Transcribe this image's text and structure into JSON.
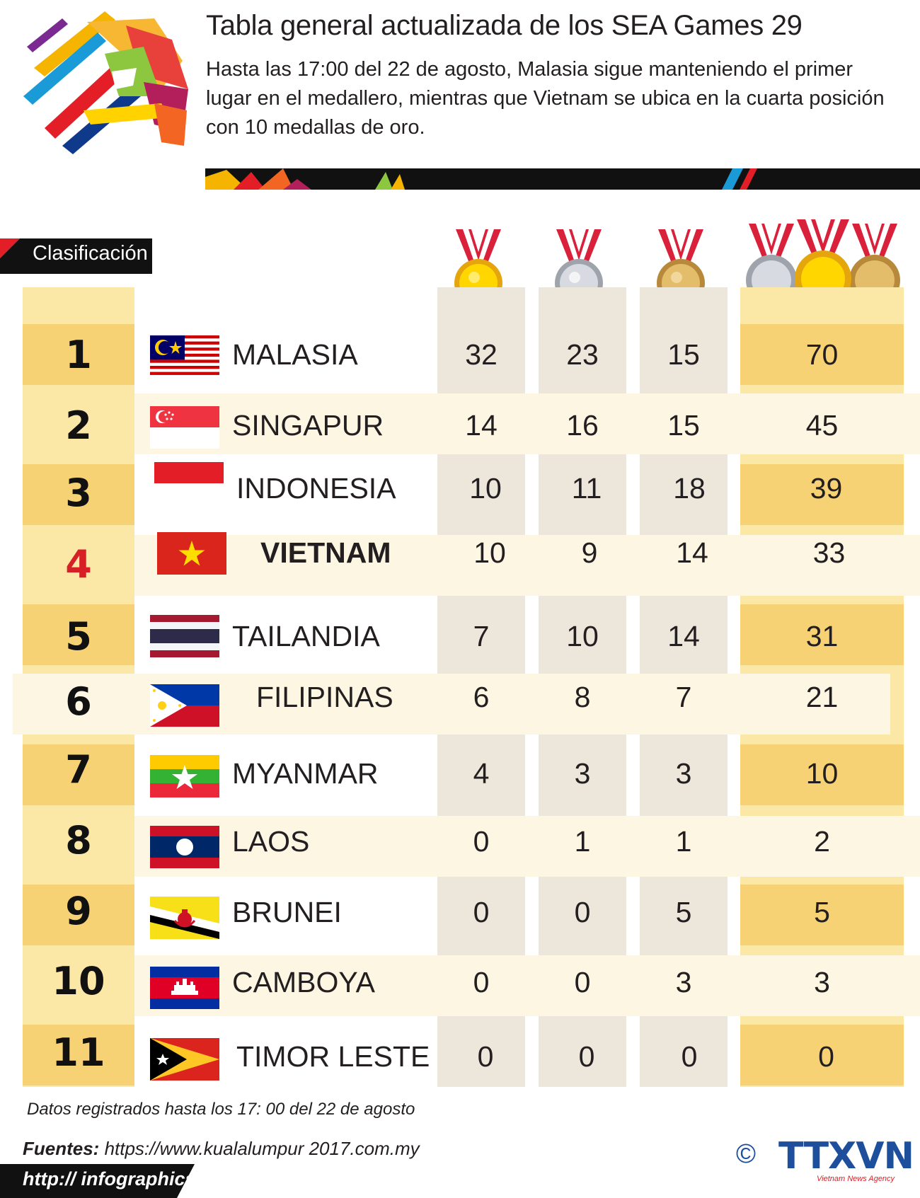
{
  "header": {
    "title": "Tabla general actualizada de los SEA Games 29",
    "subtitle": "Hasta las 17:00  del 22 de agosto, Malasia sigue manteniendo el primer lugar en el medallero, mientras que Vietnam se ubica en la cuarta posición con 10 medallas de oro."
  },
  "table": {
    "rank_header": "Clasificación",
    "medal_columns": [
      "gold-medal-icon",
      "silver-medal-icon",
      "bronze-medal-icon",
      "all-medals-icon"
    ],
    "rows": [
      {
        "rank": "1",
        "country": "MALASIA",
        "gold": "32",
        "silver": "23",
        "bronze": "15",
        "total": "70",
        "flag": "malaysia-flag-icon"
      },
      {
        "rank": "2",
        "country": "SINGAPUR",
        "gold": "14",
        "silver": "16",
        "bronze": "15",
        "total": "45",
        "flag": "singapore-flag-icon"
      },
      {
        "rank": "3",
        "country": "INDONESIA",
        "gold": "10",
        "silver": "11",
        "bronze": "18",
        "total": "39",
        "flag": "indonesia-flag-icon"
      },
      {
        "rank": "4",
        "country": "VIETNAM",
        "gold": "10",
        "silver": "9",
        "bronze": "14",
        "total": "33",
        "flag": "vietnam-flag-icon",
        "highlight": true
      },
      {
        "rank": "5",
        "country": "TAILANDIA",
        "gold": "7",
        "silver": "10",
        "bronze": "14",
        "total": "31",
        "flag": "thailand-flag-icon"
      },
      {
        "rank": "6",
        "country": "FILIPINAS",
        "gold": "6",
        "silver": "8",
        "bronze": "7",
        "total": "21",
        "flag": "philippines-flag-icon"
      },
      {
        "rank": "7",
        "country": "MYANMAR",
        "gold": "4",
        "silver": "3",
        "bronze": "3",
        "total": "10",
        "flag": "myanmar-flag-icon"
      },
      {
        "rank": "8",
        "country": "LAOS",
        "gold": "0",
        "silver": "1",
        "bronze": "1",
        "total": "2",
        "flag": "laos-flag-icon"
      },
      {
        "rank": "9",
        "country": "BRUNEI",
        "gold": "0",
        "silver": "0",
        "bronze": "5",
        "total": "5",
        "flag": "brunei-flag-icon"
      },
      {
        "rank": "10",
        "country": "CAMBOYA",
        "gold": "0",
        "silver": "0",
        "bronze": "3",
        "total": "3",
        "flag": "cambodia-flag-icon"
      },
      {
        "rank": "11",
        "country": "TIMOR LESTE",
        "gold": "0",
        "silver": "0",
        "bronze": "0",
        "total": "0",
        "flag": "timor-leste-flag-icon"
      }
    ]
  },
  "footer": {
    "note": "Datos registrados hasta los 17: 00 del 22 de agosto",
    "sources_label": "Fuentes:",
    "sources_url": " https://www.kualalumpur 2017.com.my",
    "site": "http:// infographics.vn",
    "copyright": "©",
    "agency": "TTXVN",
    "agency_sub": "Vietnam News Agency"
  },
  "colors": {
    "highlight_red": "#d71f26",
    "rank_column": "#fbe7a6",
    "medal_column": "#ede7db",
    "agency_blue": "#1d4f9c"
  }
}
